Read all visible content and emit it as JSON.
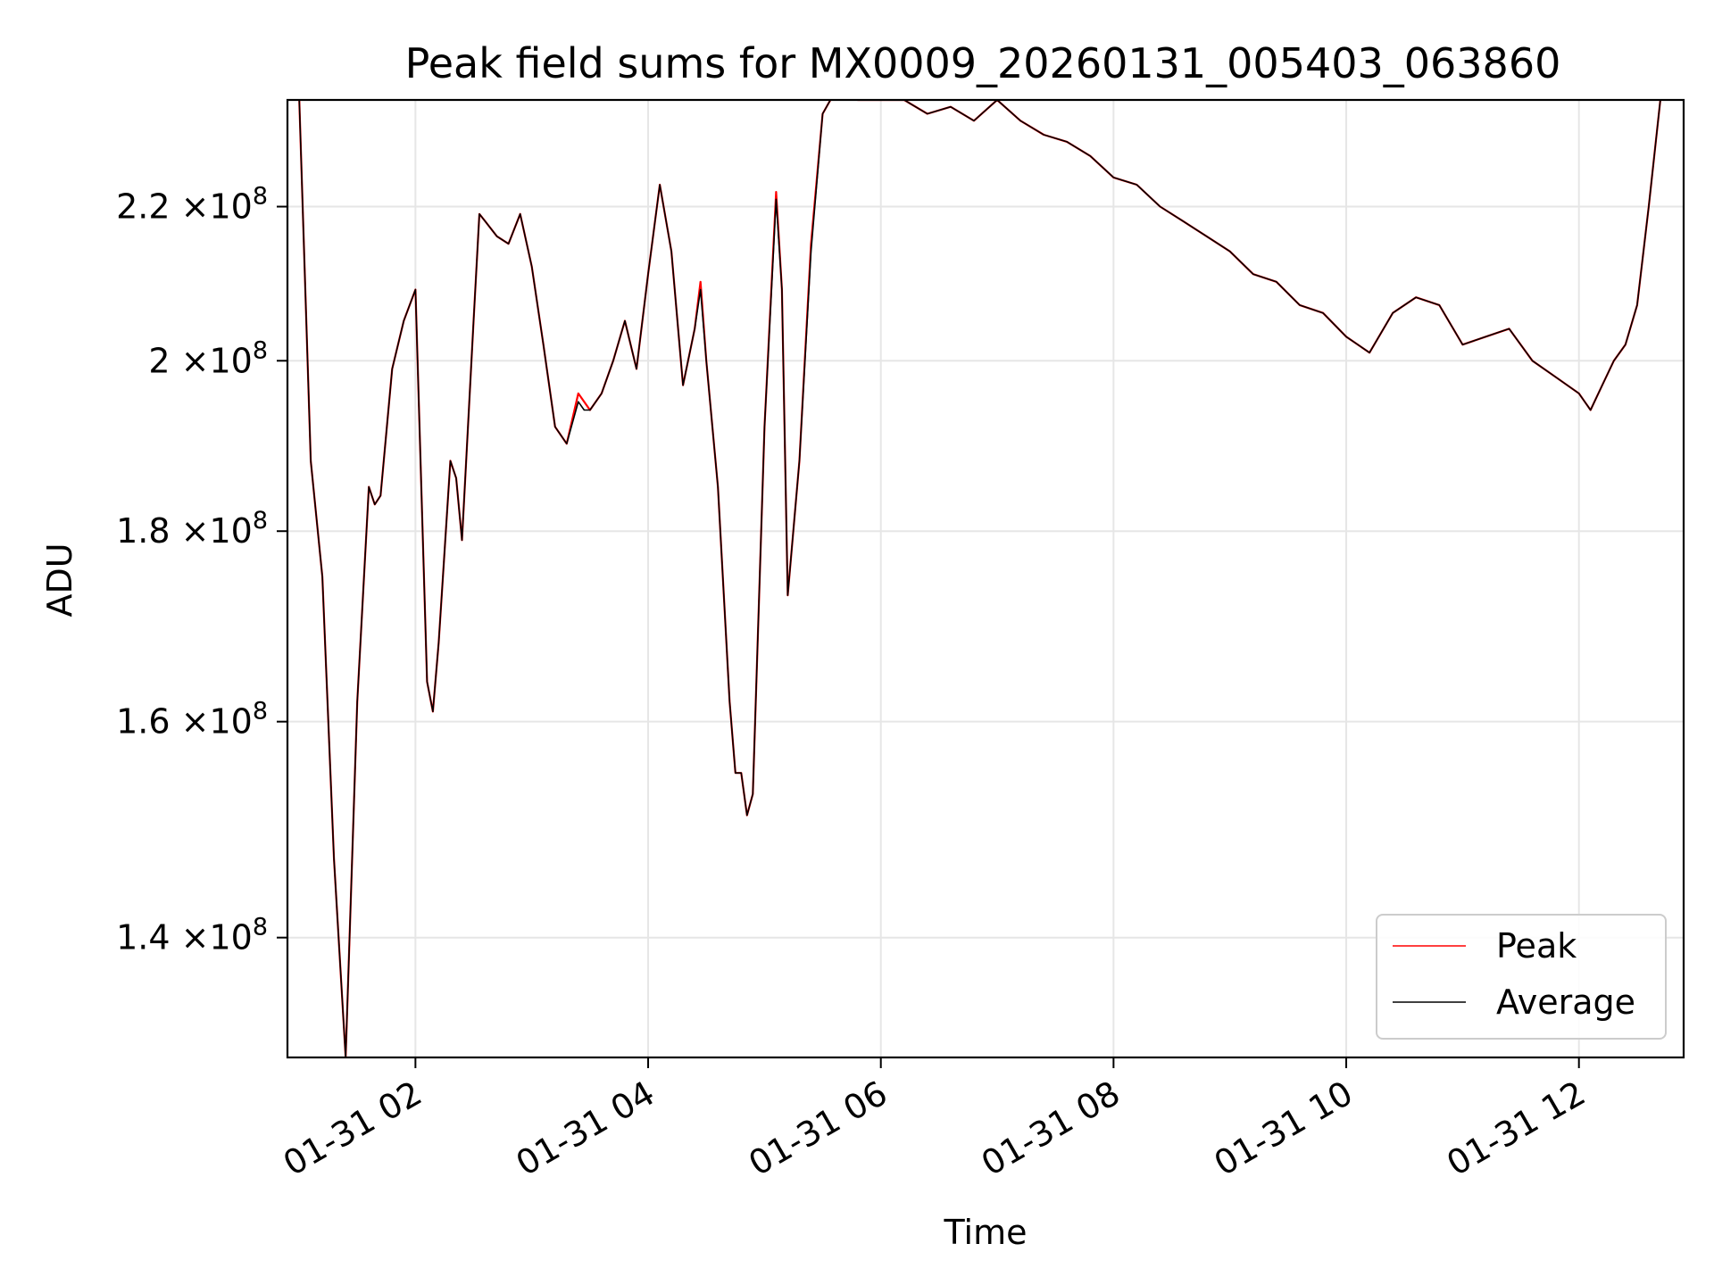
{
  "chart_data": {
    "type": "line",
    "title": "Peak field sums for MX0009_20260131_005403_063860",
    "xlabel": "Time",
    "ylabel": "ADU",
    "x_unit": "hours since 01-31 00:00",
    "xlim": [
      0.9,
      12.9
    ],
    "ylim": [
      130000000,
      235000000
    ],
    "yscale": "log",
    "grid": true,
    "legend_position": "lower right",
    "x_ticks": [
      {
        "value": 2,
        "label": "01-31 02"
      },
      {
        "value": 4,
        "label": "01-31 04"
      },
      {
        "value": 6,
        "label": "01-31 06"
      },
      {
        "value": 8,
        "label": "01-31 08"
      },
      {
        "value": 10,
        "label": "01-31 10"
      },
      {
        "value": 12,
        "label": "01-31 12"
      }
    ],
    "y_ticks": [
      {
        "value": 140000000,
        "mantissa": "1.4",
        "exponent": "8"
      },
      {
        "value": 160000000,
        "mantissa": "1.6",
        "exponent": "8"
      },
      {
        "value": 180000000,
        "mantissa": "1.8",
        "exponent": "8"
      },
      {
        "value": 200000000,
        "mantissa": "2",
        "exponent": "8"
      },
      {
        "value": 220000000,
        "mantissa": "2.2",
        "exponent": "8"
      }
    ],
    "times_label": "×10",
    "series": [
      {
        "name": "Peak",
        "color": "#ff0000"
      },
      {
        "name": "Average",
        "color": "#000000"
      }
    ],
    "x": [
      0.9,
      1.0,
      1.1,
      1.2,
      1.3,
      1.4,
      1.5,
      1.6,
      1.65,
      1.7,
      1.8,
      1.9,
      2.0,
      2.1,
      2.15,
      2.2,
      2.3,
      2.35,
      2.4,
      2.5,
      2.55,
      2.6,
      2.7,
      2.8,
      2.9,
      3.0,
      3.1,
      3.2,
      3.3,
      3.4,
      3.45,
      3.5,
      3.6,
      3.7,
      3.8,
      3.9,
      4.0,
      4.1,
      4.2,
      4.3,
      4.4,
      4.45,
      4.5,
      4.6,
      4.7,
      4.75,
      4.8,
      4.85,
      4.9,
      5.0,
      5.1,
      5.15,
      5.2,
      5.3,
      5.4,
      5.5,
      5.6,
      5.8,
      6.0,
      6.2,
      6.4,
      6.6,
      6.8,
      7.0,
      7.2,
      7.4,
      7.6,
      7.8,
      8.0,
      8.2,
      8.4,
      8.6,
      8.8,
      9.0,
      9.2,
      9.4,
      9.6,
      9.8,
      10.0,
      10.2,
      10.4,
      10.6,
      10.8,
      11.0,
      11.2,
      11.4,
      11.6,
      11.8,
      12.0,
      12.1,
      12.2,
      12.3,
      12.4,
      12.5,
      12.6,
      12.7,
      12.8,
      12.9
    ],
    "values": [
      [
        236000000,
        236000000,
        188000000,
        175000000,
        147000000,
        130000000,
        162000000,
        185000000,
        183000000,
        184000000,
        199000000,
        205000000,
        209000000,
        164000000,
        161000000,
        168000000,
        188000000,
        186000000,
        179000000,
        205000000,
        219000000,
        218000000,
        216000000,
        215000000,
        219000000,
        212000000,
        202000000,
        192000000,
        190000000,
        196000000,
        195000000,
        194000000,
        196000000,
        200000000,
        205000000,
        199000000,
        211000000,
        223000000,
        214000000,
        197000000,
        204000000,
        210000000,
        200000000,
        185000000,
        162000000,
        155000000,
        155000000,
        151000000,
        153000000,
        192000000,
        222000000,
        209000000,
        173000000,
        188000000,
        215000000,
        233000000,
        236000000,
        235000000,
        235000000,
        235000000,
        233000000,
        234000000,
        232000000,
        235000000,
        232000000,
        230000000,
        229000000,
        227000000,
        224000000,
        223000000,
        220000000,
        218000000,
        216000000,
        214000000,
        211000000,
        210000000,
        207000000,
        206000000,
        203000000,
        201000000,
        206000000,
        208000000,
        207000000,
        202000000,
        203000000,
        204000000,
        200000000,
        198000000,
        196000000,
        194000000,
        197000000,
        200000000,
        202000000,
        207000000,
        220000000,
        235000000,
        236000000,
        236000000
      ],
      [
        236000000,
        236000000,
        188000000,
        175000000,
        147000000,
        130000000,
        162000000,
        185000000,
        183000000,
        184000000,
        199000000,
        205000000,
        209000000,
        164000000,
        161000000,
        168000000,
        188000000,
        186000000,
        179000000,
        205000000,
        219000000,
        218000000,
        216000000,
        215000000,
        219000000,
        212000000,
        202000000,
        192000000,
        190000000,
        195000000,
        194000000,
        194000000,
        196000000,
        200000000,
        205000000,
        199000000,
        211000000,
        223000000,
        214000000,
        197000000,
        204000000,
        209000000,
        200000000,
        185000000,
        162000000,
        155000000,
        155000000,
        151000000,
        153000000,
        192000000,
        221000000,
        209000000,
        173000000,
        188000000,
        214000000,
        233000000,
        236000000,
        235000000,
        235000000,
        235000000,
        233000000,
        234000000,
        232000000,
        235000000,
        232000000,
        230000000,
        229000000,
        227000000,
        224000000,
        223000000,
        220000000,
        218000000,
        216000000,
        214000000,
        211000000,
        210000000,
        207000000,
        206000000,
        203000000,
        201000000,
        206000000,
        208000000,
        207000000,
        202000000,
        203000000,
        204000000,
        200000000,
        198000000,
        196000000,
        194000000,
        197000000,
        200000000,
        202000000,
        207000000,
        220000000,
        235000000,
        236000000,
        236000000
      ]
    ]
  }
}
